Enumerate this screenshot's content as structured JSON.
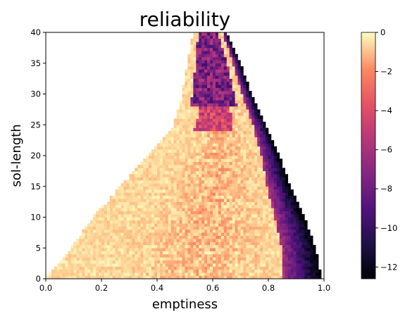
{
  "chart_data": {
    "type": "heatmap",
    "title": "reliability",
    "xlabel": "emptiness",
    "ylabel": "sol-length",
    "xlim": [
      0.0,
      1.0
    ],
    "ylim": [
      0,
      40
    ],
    "x_ticks": [
      "0.0",
      "0.2",
      "0.4",
      "0.6",
      "0.8",
      "1.0"
    ],
    "y_ticks": [
      "0",
      "5",
      "10",
      "15",
      "20",
      "25",
      "30",
      "35",
      "40"
    ],
    "colormap": "magma",
    "colorbar": {
      "range": [
        -12.6,
        0
      ],
      "ticks": [
        "0",
        "−2",
        "−4",
        "−6",
        "−8",
        "−10",
        "−12"
      ]
    },
    "grid": false,
    "grid_resolution": {
      "x_bins": 100,
      "y_bins": 80
    },
    "filled_region": {
      "left_edge": [
        [
          0,
          0.0
        ],
        [
          5,
          0.09
        ],
        [
          10,
          0.17
        ],
        [
          15,
          0.27
        ],
        [
          20,
          0.37
        ],
        [
          25,
          0.46
        ],
        [
          30,
          0.49
        ],
        [
          35,
          0.51
        ],
        [
          40,
          0.53
        ]
      ],
      "right_edge": [
        [
          0,
          0.99
        ],
        [
          5,
          0.97
        ],
        [
          10,
          0.93
        ],
        [
          15,
          0.88
        ],
        [
          20,
          0.84
        ],
        [
          25,
          0.79
        ],
        [
          30,
          0.74
        ],
        [
          35,
          0.7
        ],
        [
          40,
          0.65
        ]
      ]
    },
    "value_trend": [
      {
        "region": "lower-left and center",
        "value_range": [
          -3.5,
          0
        ]
      },
      {
        "region": "right boundary band",
        "value_range": [
          -12,
          -6
        ]
      },
      {
        "region": "upper center, sol-length 28-40, emptiness 0.5-0.65",
        "value_range": [
          -10,
          -6
        ]
      }
    ]
  }
}
